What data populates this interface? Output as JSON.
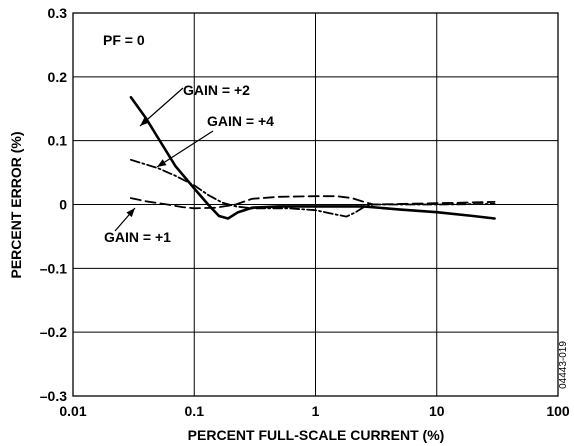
{
  "chart_data": {
    "type": "line",
    "xlabel": "PERCENT FULL-SCALE CURRENT (%)",
    "ylabel": "PERCENT ERROR (%)",
    "xscale": "log",
    "xlim": [
      0.01,
      100
    ],
    "ylim": [
      -0.3,
      0.3
    ],
    "grid": true,
    "x_ticks": [
      0.01,
      0.1,
      1,
      10,
      100
    ],
    "x_tick_labels": [
      "0.01",
      "0.1",
      "1",
      "10",
      "100"
    ],
    "y_ticks": [
      0.3,
      0.2,
      0.1,
      0,
      -0.1,
      -0.2,
      -0.3
    ],
    "y_tick_labels": [
      "0.3",
      "0.2",
      "0.1",
      "0",
      "–0.1",
      "–0.2",
      "–0.3"
    ],
    "annotations": [
      {
        "id": "pf",
        "text": "PF = 0"
      },
      {
        "id": "gain2",
        "text": "GAIN = +2"
      },
      {
        "id": "gain4",
        "text": "GAIN = +4"
      },
      {
        "id": "gain1",
        "text": "GAIN = +1"
      }
    ],
    "figure_id": "04443-019",
    "series": [
      {
        "name": "GAIN = +2",
        "style": "solid",
        "color": "#000000",
        "points": [
          [
            0.03,
            0.168
          ],
          [
            0.04,
            0.135
          ],
          [
            0.05,
            0.105
          ],
          [
            0.07,
            0.06
          ],
          [
            0.1,
            0.025
          ],
          [
            0.13,
            0.0
          ],
          [
            0.16,
            -0.018
          ],
          [
            0.19,
            -0.022
          ],
          [
            0.23,
            -0.012
          ],
          [
            0.3,
            -0.005
          ],
          [
            0.5,
            -0.003
          ],
          [
            1,
            -0.003
          ],
          [
            1.5,
            -0.003
          ],
          [
            2.5,
            -0.003
          ],
          [
            5,
            -0.008
          ],
          [
            10,
            -0.012
          ],
          [
            20,
            -0.018
          ],
          [
            30,
            -0.022
          ]
        ]
      },
      {
        "name": "GAIN = +4",
        "style": "dash-dot",
        "color": "#000000",
        "points": [
          [
            0.03,
            0.07
          ],
          [
            0.05,
            0.057
          ],
          [
            0.07,
            0.045
          ],
          [
            0.1,
            0.03
          ],
          [
            0.13,
            0.015
          ],
          [
            0.17,
            0.003
          ],
          [
            0.22,
            -0.003
          ],
          [
            0.3,
            -0.006
          ],
          [
            0.6,
            -0.006
          ],
          [
            1,
            -0.009
          ],
          [
            1.5,
            -0.016
          ],
          [
            1.8,
            -0.019
          ],
          [
            2.1,
            -0.013
          ],
          [
            2.5,
            -0.004
          ],
          [
            3,
            0.0
          ],
          [
            10,
            0.0
          ],
          [
            30,
            0.001
          ]
        ]
      },
      {
        "name": "GAIN = +1",
        "style": "dashed",
        "color": "#000000",
        "points": [
          [
            0.03,
            0.01
          ],
          [
            0.04,
            0.005
          ],
          [
            0.06,
            0.0
          ],
          [
            0.08,
            -0.004
          ],
          [
            0.1,
            -0.006
          ],
          [
            0.15,
            -0.005
          ],
          [
            0.22,
            0.0
          ],
          [
            0.3,
            0.009
          ],
          [
            0.5,
            0.012
          ],
          [
            1,
            0.013
          ],
          [
            1.5,
            0.013
          ],
          [
            2,
            0.01
          ],
          [
            2.5,
            0.004
          ],
          [
            3,
            0.0
          ],
          [
            10,
            0.002
          ],
          [
            30,
            0.004
          ]
        ]
      }
    ]
  }
}
